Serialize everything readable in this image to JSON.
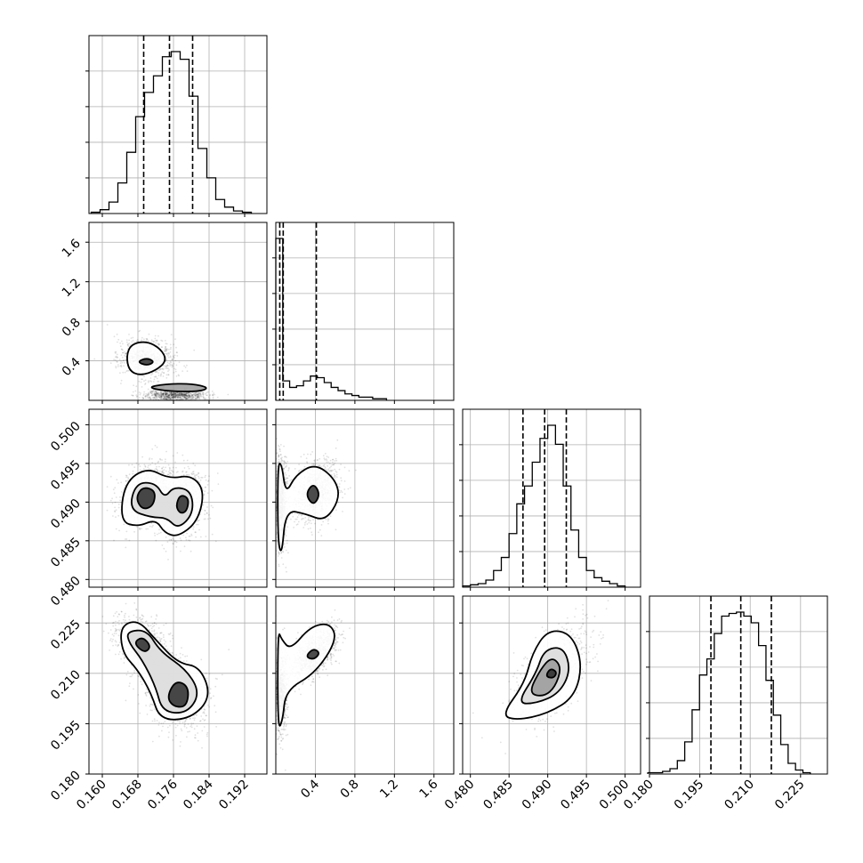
{
  "chart_data": {
    "type": "corner",
    "num_parameters": 4,
    "grid": true,
    "quantile_line_style": "dashed",
    "colors": {
      "frame": "#000000",
      "grid": "#b0b0b0",
      "contour": "#000000",
      "fill": "#ffffff",
      "points": "#000000"
    },
    "parameters": [
      {
        "index": 0,
        "range": [
          0.157,
          0.197
        ],
        "ticks": [
          0.16,
          0.168,
          0.176,
          0.184,
          0.192
        ],
        "tick_labels": [
          "0.160",
          "0.168",
          "0.176",
          "0.184",
          "0.192"
        ],
        "quantiles": [
          0.1693,
          0.1751,
          0.1803
        ]
      },
      {
        "index": 1,
        "range": [
          0.0,
          1.8
        ],
        "ticks": [
          0.4,
          0.8,
          1.2,
          1.6
        ],
        "tick_labels": [
          "0.4",
          "0.8",
          "1.2",
          "1.6"
        ],
        "quantiles": [
          0.04,
          0.075,
          0.41
        ]
      },
      {
        "index": 2,
        "range": [
          0.479,
          0.502
        ],
        "ticks": [
          0.48,
          0.485,
          0.49,
          0.495,
          0.5
        ],
        "tick_labels": [
          "0.480",
          "0.485",
          "0.490",
          "0.495",
          "0.500"
        ],
        "quantiles": [
          0.4868,
          0.4896,
          0.4924
        ]
      },
      {
        "index": 3,
        "range": [
          0.18,
          0.233
        ],
        "ticks": [
          0.18,
          0.195,
          0.21,
          0.225
        ],
        "tick_labels": [
          "0.180",
          "0.195",
          "0.210",
          "0.225"
        ],
        "quantiles": [
          0.1983,
          0.2072,
          0.2163
        ]
      }
    ],
    "histograms": [
      {
        "param": 0,
        "bin_centers": [
          0.1585,
          0.1605,
          0.1625,
          0.1645,
          0.1665,
          0.1685,
          0.1705,
          0.1725,
          0.1745,
          0.1765,
          0.1785,
          0.1805,
          0.1825,
          0.1845,
          0.1865,
          0.1885,
          0.1905,
          0.1925
        ],
        "counts": [
          1,
          3,
          9,
          24,
          48,
          76,
          95,
          108,
          123,
          127,
          121,
          92,
          51,
          28,
          11,
          5,
          2,
          1
        ]
      },
      {
        "param": 1,
        "bin_centers": [
          0.035,
          0.105,
          0.175,
          0.245,
          0.315,
          0.385,
          0.455,
          0.525,
          0.595,
          0.665,
          0.735,
          0.805,
          0.875,
          0.945,
          1.015,
          1.085
        ],
        "counts": [
          100,
          12,
          8,
          9,
          12,
          15,
          14,
          11,
          8,
          6,
          4,
          3,
          2,
          2,
          1,
          1
        ]
      },
      {
        "param": 2,
        "bin_centers": [
          0.4795,
          0.4805,
          0.4815,
          0.4825,
          0.4835,
          0.4845,
          0.4855,
          0.4865,
          0.4875,
          0.4885,
          0.4895,
          0.4905,
          0.4915,
          0.4925,
          0.4935,
          0.4945,
          0.4955,
          0.4965,
          0.4975,
          0.4985,
          0.4995
        ],
        "counts": [
          1,
          2,
          3,
          6,
          14,
          25,
          45,
          70,
          85,
          105,
          125,
          136,
          120,
          85,
          48,
          25,
          14,
          8,
          5,
          3,
          1
        ]
      },
      {
        "param": 3,
        "bin_centers": [
          0.1806,
          0.1828,
          0.185,
          0.1872,
          0.1894,
          0.1916,
          0.1938,
          0.196,
          0.1982,
          0.2004,
          0.2026,
          0.2048,
          0.207,
          0.2092,
          0.2114,
          0.2136,
          0.2158,
          0.218,
          0.2202,
          0.2224,
          0.2246,
          0.2268
        ],
        "counts": [
          1,
          1,
          2,
          4,
          10,
          24,
          48,
          74,
          86,
          105,
          118,
          120,
          121,
          118,
          113,
          96,
          70,
          44,
          22,
          8,
          3,
          1
        ]
      }
    ],
    "pairs": [
      {
        "x_param": 0,
        "y_param": 1,
        "modes": [
          {
            "x": 0.17,
            "y": 0.42,
            "sx": 0.003,
            "sy": 0.1,
            "corr": -0.1
          },
          {
            "x": 0.1765,
            "y": 0.05,
            "sx": 0.0035,
            "sy": 0.03,
            "corr": 0.0
          }
        ],
        "contour_levels": [
          [
            [
              0.1654,
              0.45
            ],
            [
              0.1665,
              0.57
            ],
            [
              0.17,
              0.6
            ],
            [
              0.1732,
              0.52
            ],
            [
              0.1745,
              0.4
            ],
            [
              0.172,
              0.3
            ],
            [
              0.1685,
              0.25
            ],
            [
              0.166,
              0.3
            ]
          ],
          [
            [
              0.1678,
              0.39
            ],
            [
              0.17,
              0.43
            ],
            [
              0.1718,
              0.39
            ],
            [
              0.17,
              0.35
            ]
          ],
          [
            [
              0.17,
              0.13
            ],
            [
              0.174,
              0.165
            ],
            [
              0.18,
              0.17
            ],
            [
              0.184,
              0.13
            ],
            [
              0.182,
              0.09
            ],
            [
              0.175,
              0.09
            ]
          ]
        ]
      },
      {
        "x_param": 0,
        "y_param": 2,
        "modes": [
          {
            "x": 0.17,
            "y": 0.491,
            "sx": 0.003,
            "sy": 0.002,
            "corr": 0.3
          },
          {
            "x": 0.1775,
            "y": 0.4898,
            "sx": 0.003,
            "sy": 0.0022,
            "corr": 0.2
          }
        ],
        "contour_levels": [
          [
            [
              0.164,
              0.4875
            ],
            [
              0.165,
              0.4925
            ],
            [
              0.17,
              0.4945
            ],
            [
              0.175,
              0.493
            ],
            [
              0.18,
              0.4935
            ],
            [
              0.183,
              0.4915
            ],
            [
              0.1815,
              0.4875
            ],
            [
              0.177,
              0.4855
            ],
            [
              0.174,
              0.486
            ],
            [
              0.172,
              0.4878
            ],
            [
              0.168,
              0.4868
            ]
          ],
          [
            [
              0.166,
              0.489
            ],
            [
              0.1675,
              0.4925
            ],
            [
              0.172,
              0.4925
            ],
            [
              0.174,
              0.4905
            ],
            [
              0.176,
              0.492
            ],
            [
              0.18,
              0.4915
            ],
            [
              0.1805,
              0.4885
            ],
            [
              0.177,
              0.4865
            ],
            [
              0.1745,
              0.488
            ],
            [
              0.171,
              0.488
            ]
          ],
          [
            [
              0.1675,
              0.4905
            ],
            [
              0.169,
              0.492
            ],
            [
              0.172,
              0.4915
            ],
            [
              0.1715,
              0.4895
            ],
            [
              0.169,
              0.489
            ]
          ],
          [
            [
              0.1765,
              0.4895
            ],
            [
              0.1775,
              0.491
            ],
            [
              0.1795,
              0.4905
            ],
            [
              0.179,
              0.4888
            ],
            [
              0.1775,
              0.4885
            ]
          ]
        ]
      },
      {
        "x_param": 0,
        "y_param": 3,
        "modes": [
          {
            "x": 0.169,
            "y": 0.218,
            "sx": 0.003,
            "sy": 0.0045,
            "corr": -0.4
          },
          {
            "x": 0.177,
            "y": 0.204,
            "sx": 0.0035,
            "sy": 0.0055,
            "corr": -0.2
          }
        ],
        "contour_levels": [
          [
            [
              0.164,
              0.224
            ],
            [
              0.168,
              0.226
            ],
            [
              0.172,
              0.22
            ],
            [
              0.177,
              0.213
            ],
            [
              0.182,
              0.212
            ],
            [
              0.1845,
              0.203
            ],
            [
              0.18,
              0.1965
            ],
            [
              0.173,
              0.196
            ],
            [
              0.171,
              0.204
            ],
            [
              0.168,
              0.211
            ],
            [
              0.1645,
              0.216
            ]
          ],
          [
            [
              0.1655,
              0.2225
            ],
            [
              0.17,
              0.223
            ],
            [
              0.173,
              0.2165
            ],
            [
              0.179,
              0.211
            ],
            [
              0.182,
              0.204
            ],
            [
              0.179,
              0.198
            ],
            [
              0.1735,
              0.1985
            ],
            [
              0.172,
              0.206
            ],
            [
              0.169,
              0.214
            ],
            [
              0.166,
              0.219
            ]
          ],
          [
            [
              0.167,
              0.219
            ],
            [
              0.169,
              0.221
            ],
            [
              0.171,
              0.218
            ],
            [
              0.1695,
              0.216
            ]
          ],
          [
            [
              0.1745,
              0.203
            ],
            [
              0.1765,
              0.208
            ],
            [
              0.1795,
              0.206
            ],
            [
              0.179,
              0.2
            ],
            [
              0.176,
              0.2
            ]
          ]
        ]
      },
      {
        "x_param": 1,
        "y_param": 2,
        "modes": [
          {
            "x": 0.05,
            "y": 0.49,
            "sx": 0.03,
            "sy": 0.003,
            "corr": 0.0
          },
          {
            "x": 0.4,
            "y": 0.4915,
            "sx": 0.12,
            "sy": 0.002,
            "corr": 0.2
          }
        ],
        "contour_levels": [
          [
            [
              0.02,
              0.485
            ],
            [
              0.02,
              0.495
            ],
            [
              0.06,
              0.495
            ],
            [
              0.1,
              0.491
            ],
            [
              0.2,
              0.4935
            ],
            [
              0.4,
              0.495
            ],
            [
              0.6,
              0.493
            ],
            [
              0.65,
              0.4905
            ],
            [
              0.5,
              0.4875
            ],
            [
              0.3,
              0.4885
            ],
            [
              0.1,
              0.489
            ],
            [
              0.06,
              0.483
            ]
          ],
          [
            [
              0.3,
              0.491
            ],
            [
              0.38,
              0.4925
            ],
            [
              0.45,
              0.491
            ],
            [
              0.38,
              0.4895
            ]
          ]
        ]
      },
      {
        "x_param": 1,
        "y_param": 3,
        "modes": [
          {
            "x": 0.05,
            "y": 0.204,
            "sx": 0.03,
            "sy": 0.006,
            "corr": 0.0
          },
          {
            "x": 0.4,
            "y": 0.216,
            "sx": 0.12,
            "sy": 0.004,
            "corr": 0.6
          }
        ],
        "contour_levels": [
          [
            [
              0.02,
              0.193
            ],
            [
              0.02,
              0.223
            ],
            [
              0.06,
              0.22
            ],
            [
              0.15,
              0.217
            ],
            [
              0.35,
              0.224
            ],
            [
              0.55,
              0.225
            ],
            [
              0.62,
              0.22
            ],
            [
              0.4,
              0.21
            ],
            [
              0.1,
              0.205
            ],
            [
              0.07,
              0.196
            ]
          ],
          [
            [
              0.3,
              0.215
            ],
            [
              0.38,
              0.2175
            ],
            [
              0.45,
              0.216
            ],
            [
              0.38,
              0.214
            ]
          ]
        ]
      },
      {
        "x_param": 2,
        "y_param": 3,
        "modes": [
          {
            "x": 0.4905,
            "y": 0.21,
            "sx": 0.0025,
            "sy": 0.007,
            "corr": 0.6
          }
        ],
        "contour_levels": [
          [
            [
              0.484,
              0.1975
            ],
            [
              0.487,
              0.207
            ],
            [
              0.488,
              0.216
            ],
            [
              0.49,
              0.223
            ],
            [
              0.493,
              0.222
            ],
            [
              0.4945,
              0.213
            ],
            [
              0.4935,
              0.203
            ],
            [
              0.49,
              0.198
            ],
            [
              0.486,
              0.196
            ]
          ],
          [
            [
              0.486,
              0.201
            ],
            [
              0.4885,
              0.21
            ],
            [
              0.4895,
              0.217
            ],
            [
              0.492,
              0.218
            ],
            [
              0.493,
              0.211
            ],
            [
              0.4915,
              0.204
            ],
            [
              0.4885,
              0.201
            ]
          ],
          [
            [
              0.4875,
              0.204
            ],
            [
              0.489,
              0.211
            ],
            [
              0.4905,
              0.215
            ],
            [
              0.4918,
              0.212
            ],
            [
              0.491,
              0.206
            ],
            [
              0.4895,
              0.203
            ]
          ],
          [
            [
              0.4897,
              0.209
            ],
            [
              0.4903,
              0.2115
            ],
            [
              0.4912,
              0.2105
            ],
            [
              0.4908,
              0.2085
            ]
          ]
        ]
      }
    ]
  }
}
